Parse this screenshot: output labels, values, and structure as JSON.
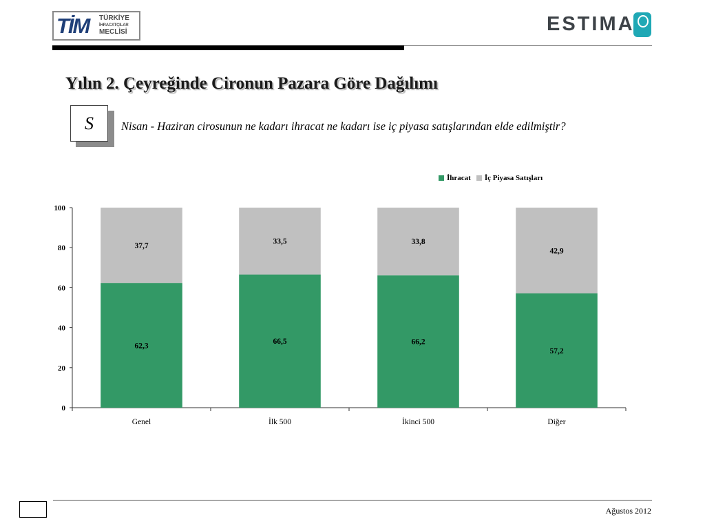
{
  "header": {
    "tim_logo": {
      "mark": "TİM",
      "line1": "TÜRKİYE",
      "line2": "İHRACATÇILAR",
      "line3": "MECLİSİ"
    },
    "estima_logo": {
      "word": "ESTIMA",
      "color": "#1fa8b5"
    }
  },
  "title": "Yılın 2. Çeyreğinde Cironun Pazara Göre Dağılımı",
  "question": {
    "badge": "S",
    "text": "Nisan - Haziran cirosunun ne kadarı ihracat ne kadarı ise iç piyasa satışlarından elde edilmiştir?"
  },
  "chart_data": {
    "type": "bar",
    "stacked": true,
    "categories": [
      "Genel",
      "İlk 500",
      "İkinci 500",
      "Diğer"
    ],
    "series": [
      {
        "name": "İhracat",
        "color": "#339966",
        "values": [
          62.3,
          66.5,
          66.2,
          57.2
        ],
        "labels": [
          "62,3",
          "66,5",
          "66,2",
          "57,2"
        ]
      },
      {
        "name": "İç Piyasa Satışları",
        "color": "#c0c0c0",
        "values": [
          37.7,
          33.5,
          33.8,
          42.9
        ],
        "labels": [
          "37,7",
          "33,5",
          "33,8",
          "42,9"
        ]
      }
    ],
    "ylim": [
      0,
      100
    ],
    "yticks": [
      "0",
      "20",
      "40",
      "60",
      "80",
      "100"
    ],
    "legend": "top-right",
    "grid": false
  },
  "footer": {
    "date": "Ağustos 2012"
  }
}
